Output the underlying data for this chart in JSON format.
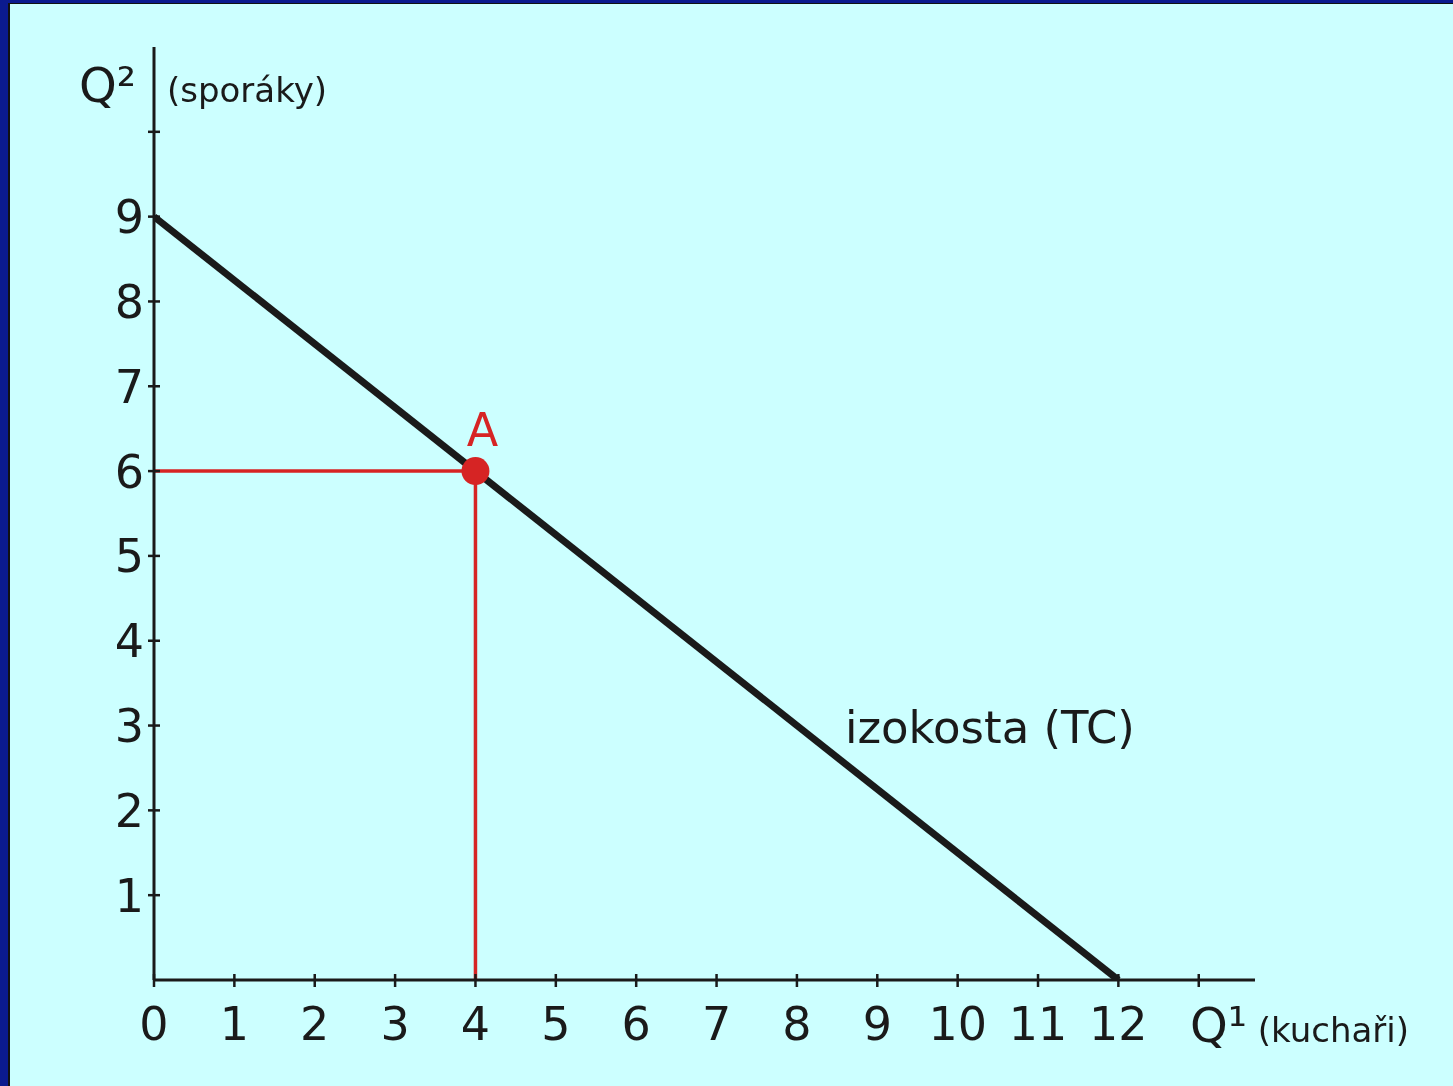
{
  "chart_data": {
    "type": "line",
    "xlabel": "Q¹ (kuchaři)",
    "ylabel": "Q² (sporáky)",
    "xlim": [
      0,
      13.7
    ],
    "ylim": [
      0,
      11
    ],
    "xticks": [
      {
        "value": 0,
        "label": "0"
      },
      1,
      2,
      3,
      4,
      5,
      6,
      7,
      8,
      9,
      10,
      11,
      12,
      {
        "value": 13,
        "label": null
      }
    ],
    "yticks": [
      1,
      2,
      3,
      4,
      5,
      6,
      7,
      8,
      9,
      {
        "value": 10,
        "label": null
      }
    ],
    "series": [
      {
        "name": "izokosta (TC)",
        "color": "#1a1a1a",
        "x": [
          0,
          12
        ],
        "values": [
          9,
          0
        ],
        "marker": "none"
      },
      {
        "color": "#d62424",
        "x": [
          0,
          4,
          4
        ],
        "values": [
          6,
          6,
          0
        ],
        "marker": "none"
      },
      {
        "name": "A",
        "type": "scatter",
        "color": "#d62424",
        "x": [
          4
        ],
        "values": [
          6
        ],
        "marker": "circle"
      }
    ]
  }
}
